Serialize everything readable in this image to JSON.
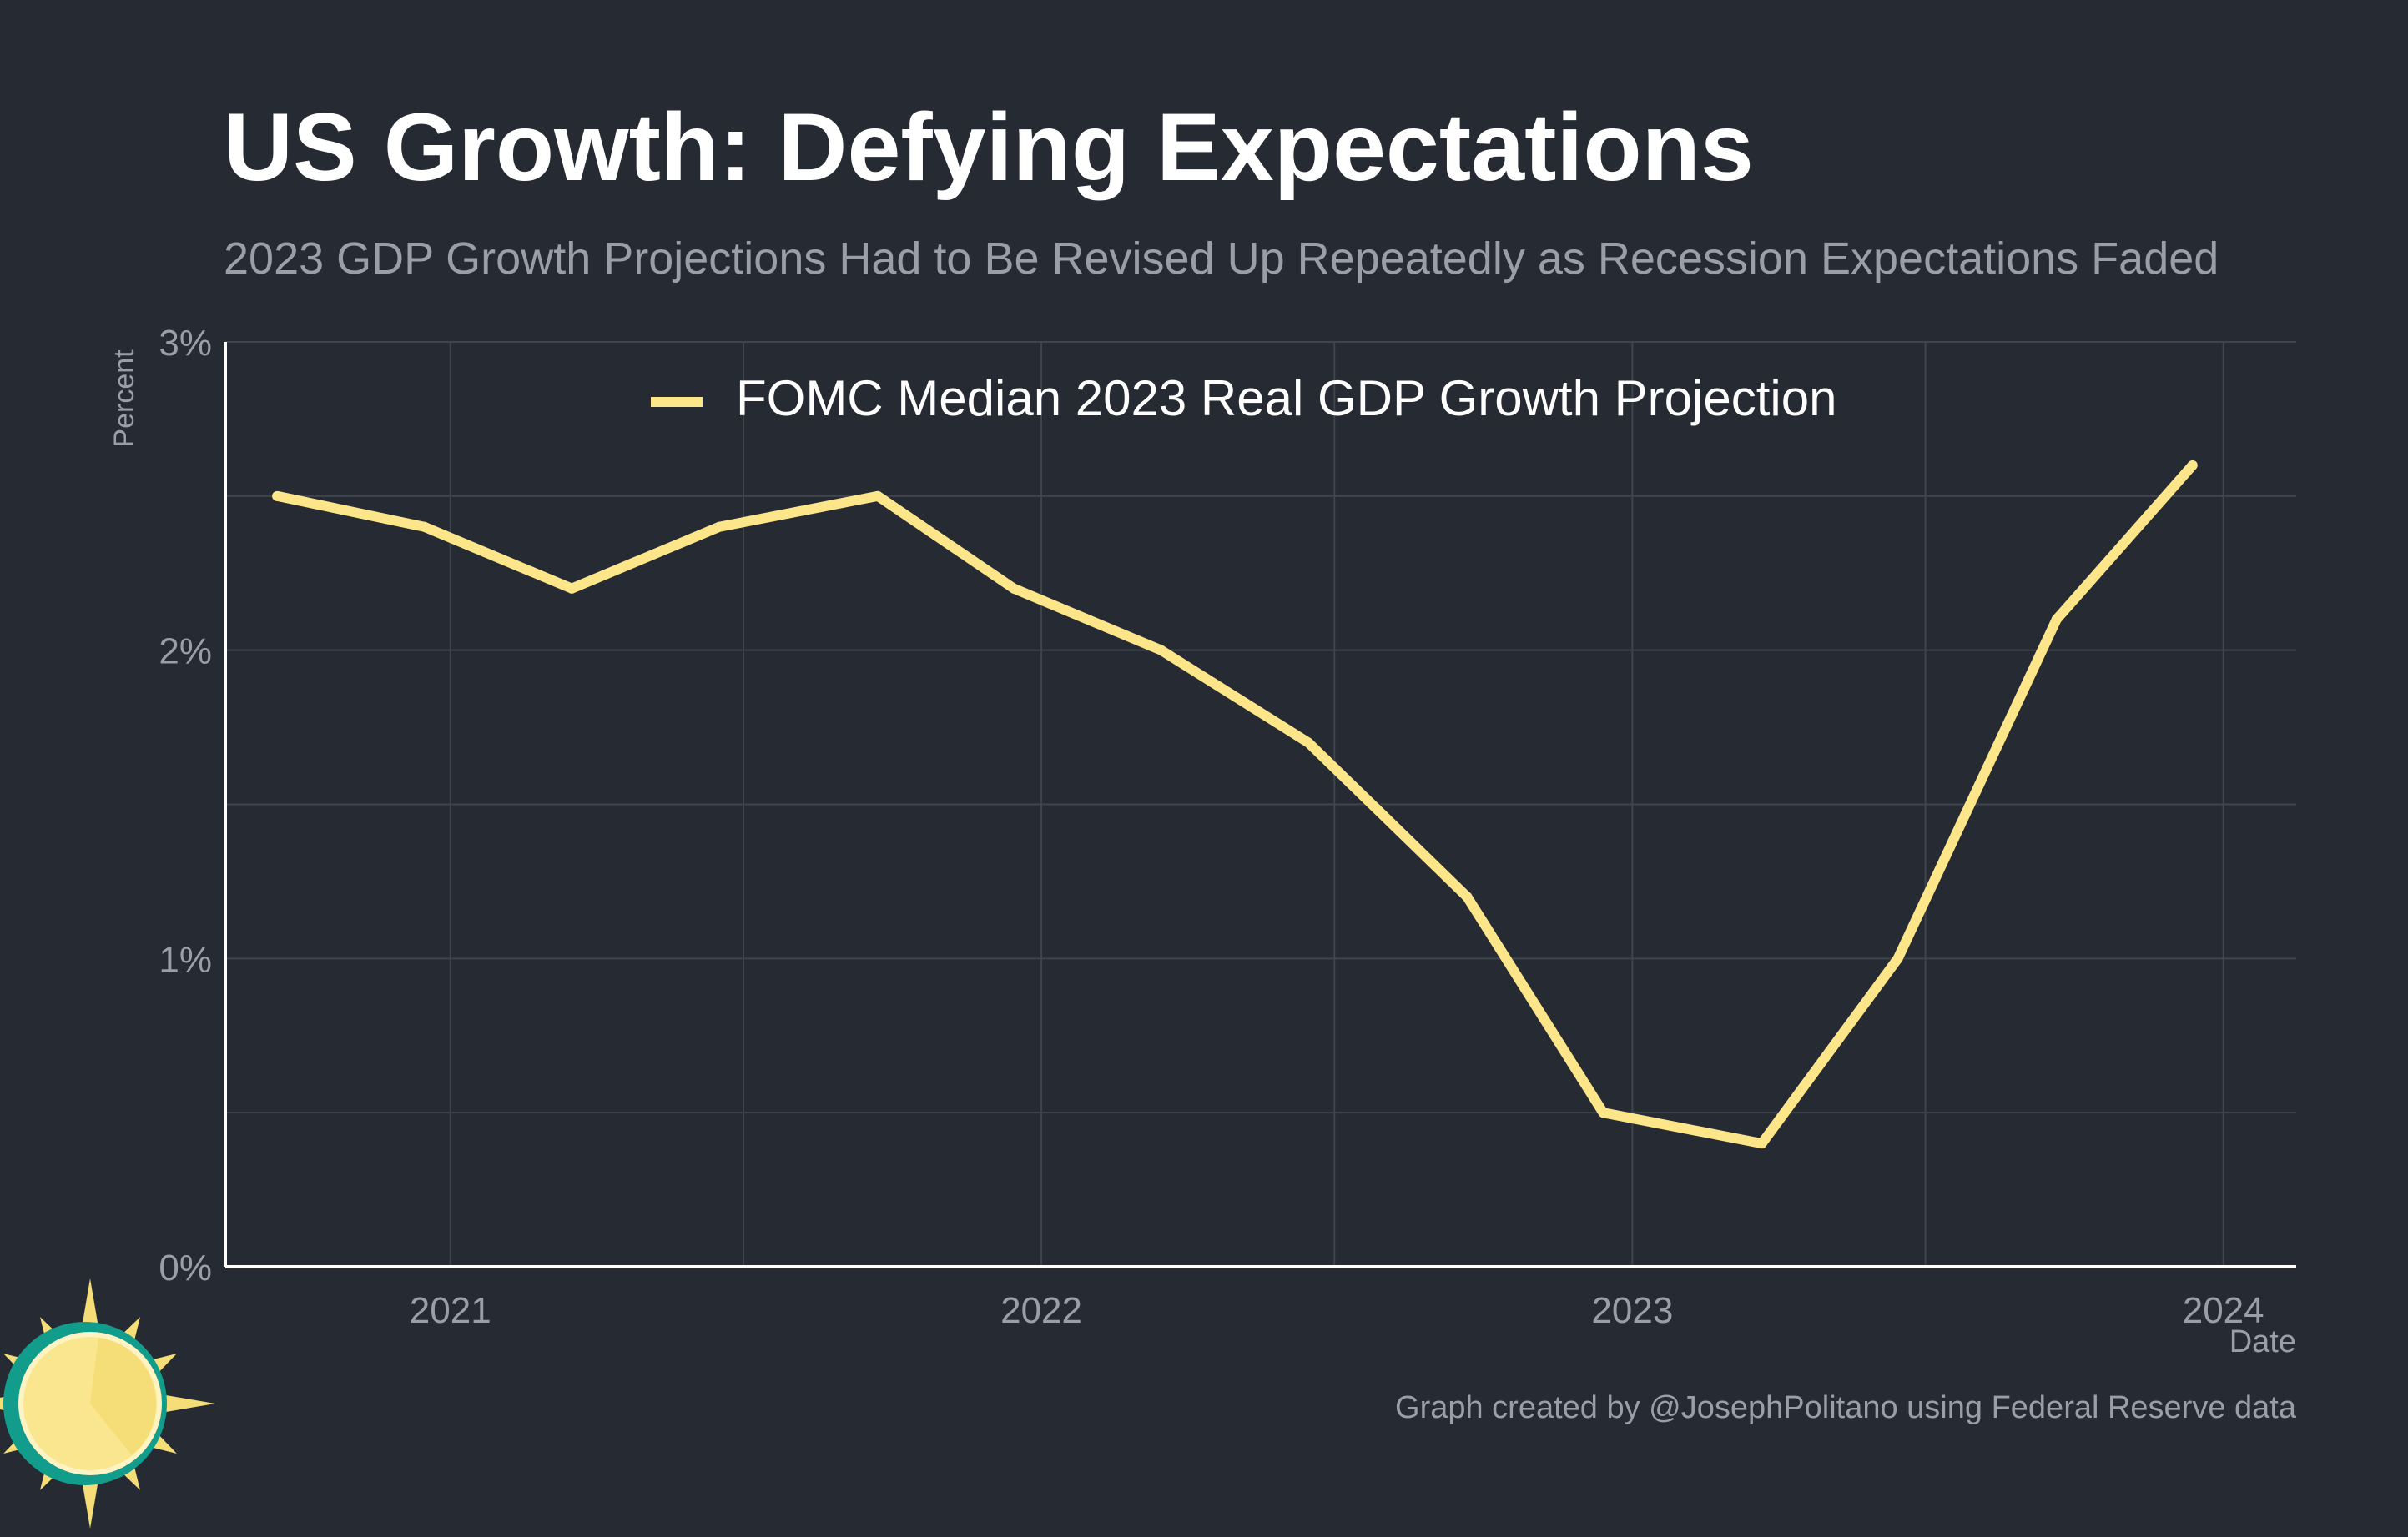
{
  "colors": {
    "background": "#252a33",
    "title": "#ffffff",
    "subtitle": "#9a9ea6",
    "axis_text": "#9a9ea6",
    "grid": "#3f444d",
    "axis_line": "#ffffff",
    "series": "#fde68a",
    "logo_teal": "#119c8c",
    "logo_yellow": "#f5dd77",
    "logo_light": "#fbe690"
  },
  "header": {
    "title": "US Growth: Defying Expectations",
    "subtitle": "2023 GDP Growth Projections Had to Be Revised Up Repeatedly as Recession Expectations Faded"
  },
  "footer": {
    "credit": "Graph created by @JosephPolitano using Federal Reserve data"
  },
  "logo": {
    "icon": "sun-icon"
  },
  "chart_data": {
    "type": "line",
    "title": "US Growth: Defying Expectations",
    "subtitle": "2023 GDP Growth Projections Had to Be Revised Up Repeatedly as Recession Expectations Faded",
    "xlabel": "Date",
    "ylabel": "Percent",
    "x_ticks": [
      "2021",
      "2022",
      "2023",
      "2024"
    ],
    "y_ticks": [
      "0%",
      "1%",
      "2%",
      "3%"
    ],
    "ylim": [
      0,
      3
    ],
    "xlim": [
      "2020-08-15",
      "2024-02-15"
    ],
    "grid": true,
    "legend_position": "top-center",
    "series": [
      {
        "name": "FOMC Median 2023 Real GDP Growth Projection",
        "points": [
          {
            "x": "2020-09-16",
            "y": 2.5
          },
          {
            "x": "2020-12-16",
            "y": 2.4
          },
          {
            "x": "2021-03-17",
            "y": 2.2
          },
          {
            "x": "2021-06-16",
            "y": 2.4
          },
          {
            "x": "2021-09-22",
            "y": 2.5
          },
          {
            "x": "2021-12-15",
            "y": 2.2
          },
          {
            "x": "2022-03-16",
            "y": 2.0
          },
          {
            "x": "2022-06-15",
            "y": 1.7
          },
          {
            "x": "2022-09-21",
            "y": 1.2
          },
          {
            "x": "2022-12-14",
            "y": 0.5
          },
          {
            "x": "2023-03-22",
            "y": 0.4
          },
          {
            "x": "2023-06-14",
            "y": 1.0
          },
          {
            "x": "2023-09-20",
            "y": 2.1
          },
          {
            "x": "2023-12-13",
            "y": 2.6
          }
        ]
      }
    ]
  }
}
